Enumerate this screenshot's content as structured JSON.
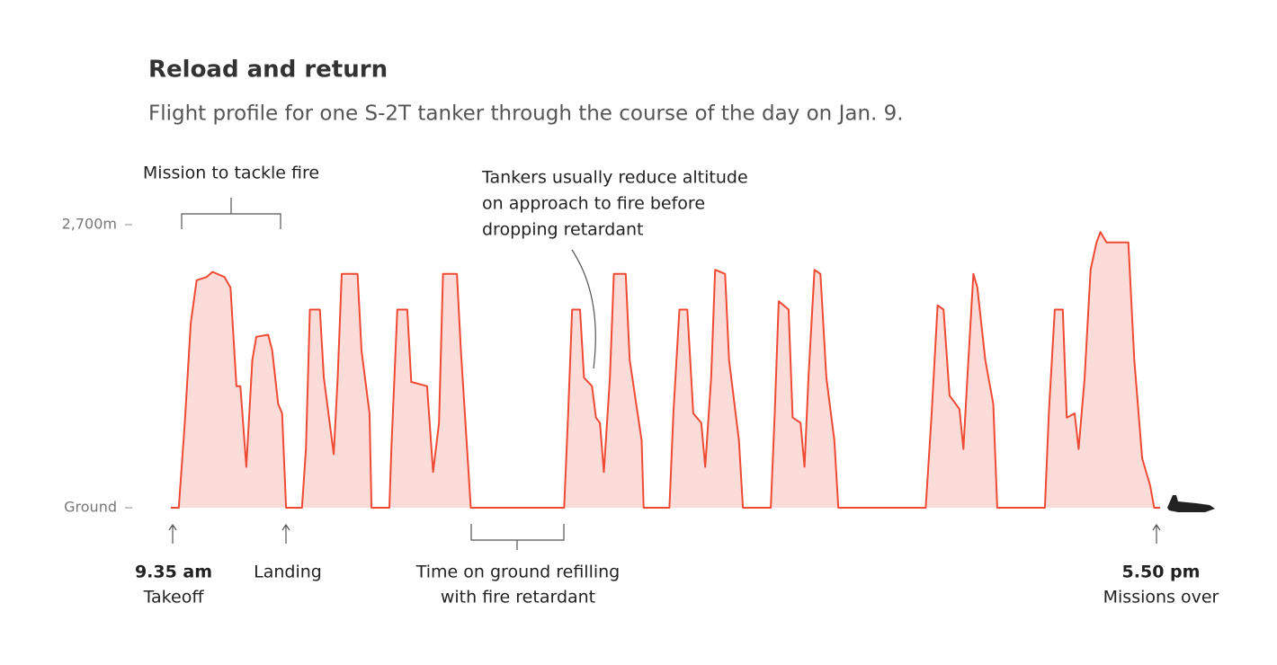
{
  "chart_data": {
    "type": "area",
    "title": "Reload and return",
    "subtitle": "Flight profile for one S-2T tanker through the course of the day on Jan. 9.",
    "line_color": "#ef4a33",
    "fill_color": "#fcdcd9",
    "xlim": [
      574,
      1072
    ],
    "ylim": [
      0,
      2700
    ],
    "yticks": [
      {
        "value": 0,
        "label": "Ground"
      },
      {
        "value": 2700,
        "label": "2,700m"
      }
    ],
    "x": [
      574,
      578,
      581,
      584,
      587,
      592,
      595,
      601,
      604,
      607,
      609,
      612,
      615,
      617,
      623,
      625,
      628,
      630,
      632,
      640,
      642,
      644,
      649,
      651,
      656,
      658,
      660,
      668,
      670,
      674,
      675,
      684,
      685,
      688,
      693,
      695,
      703,
      706,
      709,
      711,
      718,
      720,
      722,
      725,
      772,
      774,
      776,
      780,
      782,
      786,
      788,
      790,
      792,
      795,
      797,
      803,
      805,
      811,
      812,
      825,
      827,
      830,
      834,
      837,
      841,
      843,
      846,
      848,
      853,
      855,
      860,
      862,
      876,
      878,
      880,
      885,
      887,
      891,
      893,
      895,
      898,
      901,
      904,
      908,
      910,
      954,
      957,
      960,
      963,
      966,
      971,
      973,
      975,
      978,
      980,
      984,
      988,
      990,
      1014,
      1016,
      1019,
      1023,
      1025,
      1029,
      1031,
      1034,
      1037,
      1040,
      1042,
      1045,
      1056,
      1059,
      1063,
      1067,
      1069,
      1072
    ],
    "values": [
      0,
      0,
      810,
      1760,
      2170,
      2200,
      2250,
      2200,
      2100,
      1160,
      1160,
      390,
      1410,
      1630,
      1650,
      1500,
      990,
      900,
      0,
      0,
      560,
      1890,
      1890,
      1240,
      510,
      1240,
      2230,
      2230,
      1500,
      900,
      0,
      0,
      560,
      1890,
      1890,
      1200,
      1160,
      340,
      810,
      2230,
      2230,
      1500,
      900,
      0,
      0,
      900,
      1890,
      1890,
      1240,
      1160,
      860,
      810,
      340,
      1240,
      2230,
      2230,
      1410,
      640,
      0,
      0,
      900,
      1890,
      1890,
      900,
      810,
      390,
      1240,
      2270,
      2230,
      1410,
      640,
      0,
      0,
      900,
      1970,
      1890,
      860,
      810,
      390,
      1240,
      2270,
      2230,
      1240,
      640,
      0,
      0,
      900,
      1930,
      1890,
      1070,
      940,
      560,
      1240,
      2230,
      2100,
      1410,
      990,
      0,
      0,
      900,
      1890,
      1890,
      860,
      900,
      560,
      1240,
      2270,
      2530,
      2630,
      2530,
      2530,
      1410,
      470,
      210,
      0,
      0
    ],
    "annotations": {
      "mission": "Mission to tackle fire",
      "approach": [
        "Tankers usually reduce altitude",
        "on approach to fire before",
        "dropping retardant"
      ],
      "takeoff_time": "9.35 am",
      "takeoff": "Takeoff",
      "landing": "Landing",
      "refill": [
        "Time on ground refilling",
        "with fire retardant"
      ],
      "end_time": "5.50 pm",
      "end": "Missions over"
    }
  }
}
